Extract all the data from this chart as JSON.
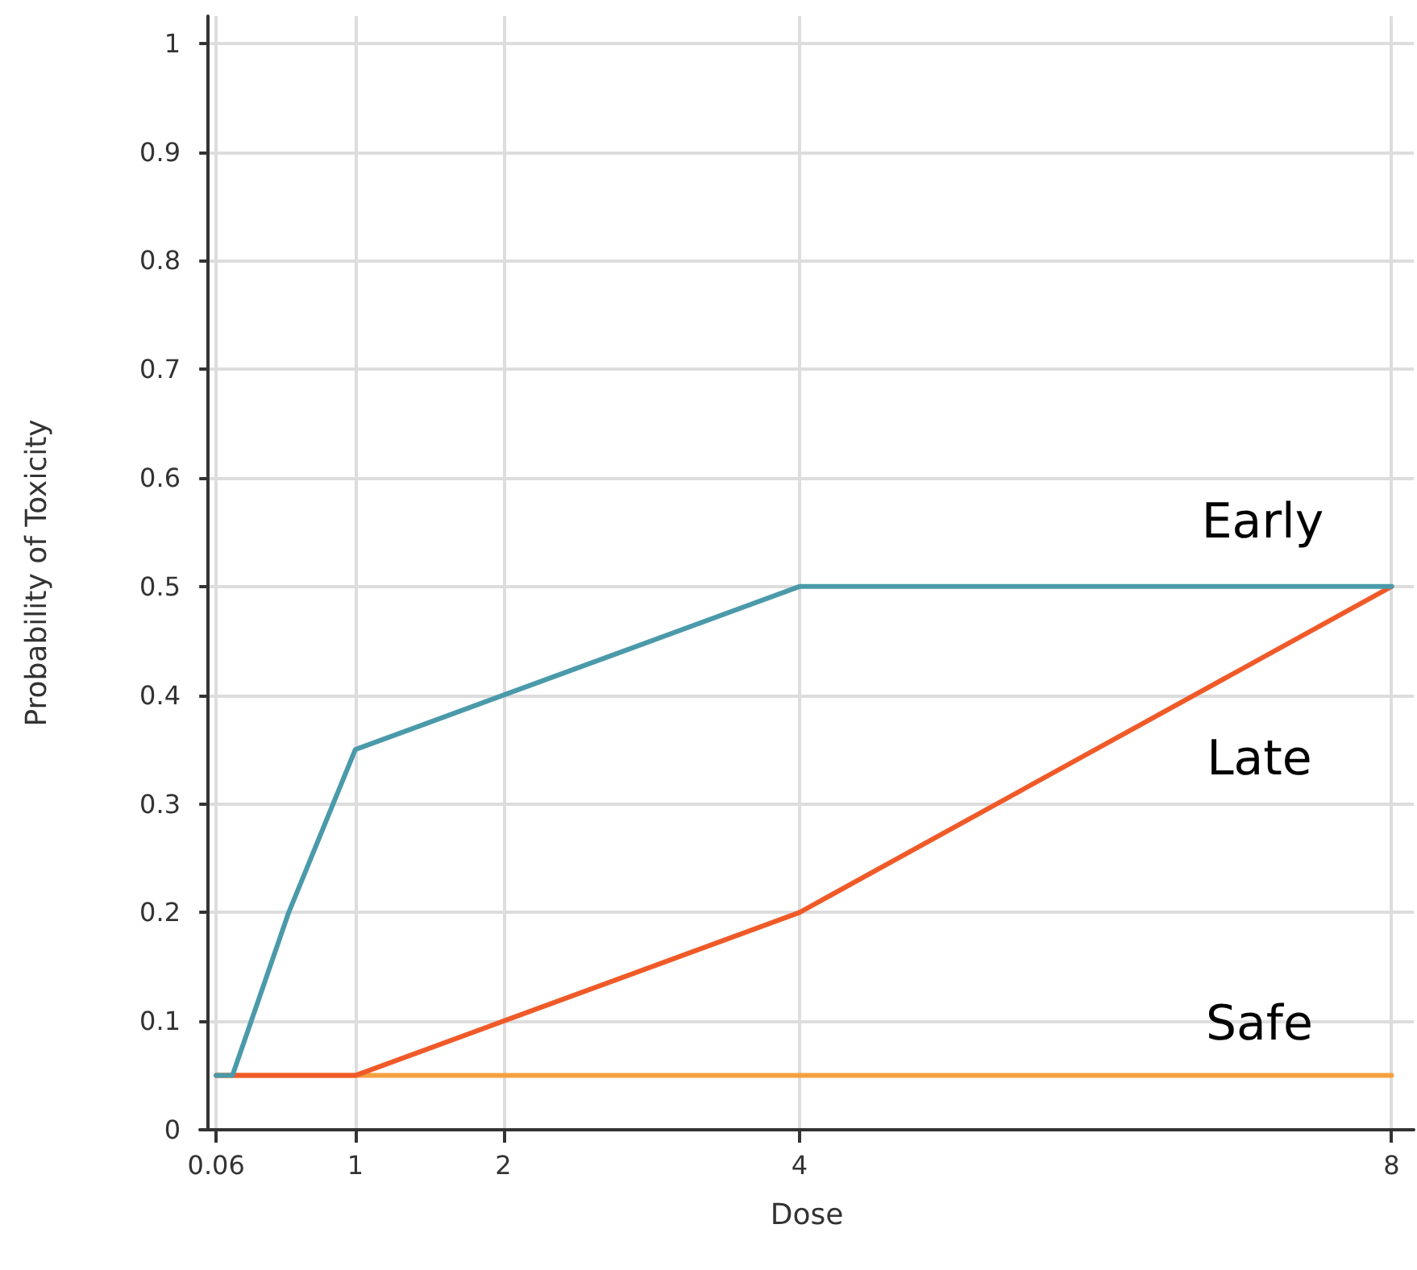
{
  "chart_data": {
    "type": "line",
    "xlabel": "Dose",
    "ylabel": "Probability of Toxicity",
    "xlim": [
      -0.05,
      8.15
    ],
    "xticks": [
      0.06,
      1,
      2,
      4,
      8
    ],
    "ylim": [
      0,
      1.025
    ],
    "yticks": [
      0,
      0.1,
      0.2,
      0.3,
      0.4,
      0.5,
      0.6,
      0.7,
      0.8,
      0.9,
      1
    ],
    "grid": true,
    "legend": false,
    "marker": "none",
    "line_style": "solid",
    "series": [
      {
        "name": "Early",
        "color": "#4a9aaa",
        "x": [
          0.06,
          0.17,
          0.55,
          1,
          2,
          4,
          8
        ],
        "values": [
          0.05,
          0.05,
          0.2,
          0.35,
          0.4,
          0.5,
          0.5
        ]
      },
      {
        "name": "Late",
        "color": "#f05a28",
        "x": [
          0.06,
          1,
          2,
          4,
          8
        ],
        "values": [
          0.05,
          0.05,
          0.1,
          0.2,
          0.5
        ]
      },
      {
        "name": "Safe",
        "color": "#f5a040",
        "x": [
          0.06,
          8
        ],
        "values": [
          0.05,
          0.05
        ]
      }
    ]
  }
}
